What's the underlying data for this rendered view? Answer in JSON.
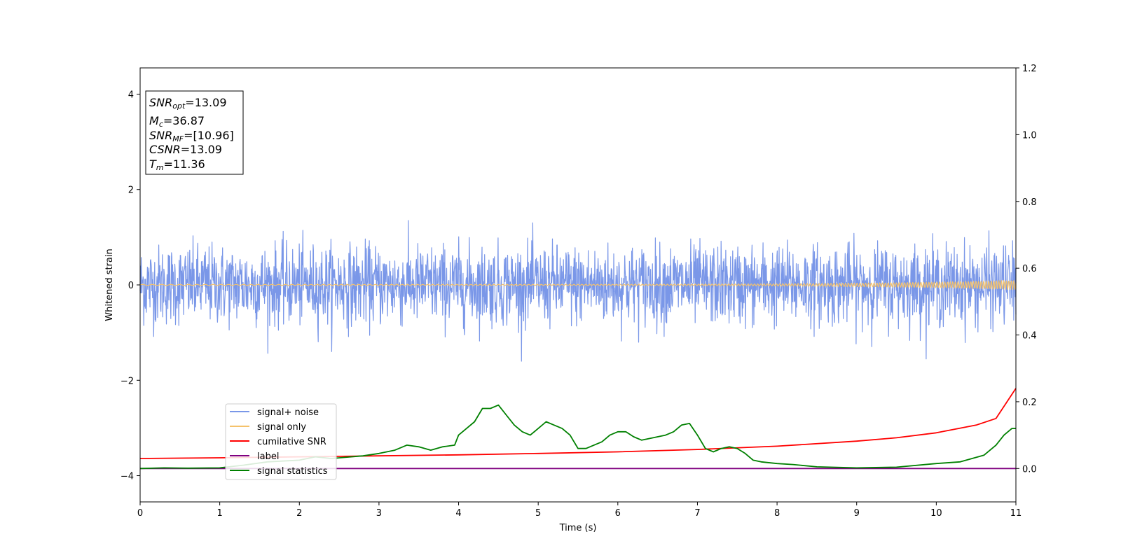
{
  "chart_data": {
    "type": "line",
    "xlabel": "Time (s)",
    "ylabel": "Whitened strain",
    "xlim": [
      0,
      11
    ],
    "ylim": [
      -4.55,
      4.55
    ],
    "y2lim": [
      -0.1,
      1.2
    ],
    "xticks": [
      "0",
      "1",
      "2",
      "3",
      "4",
      "5",
      "6",
      "7",
      "8",
      "9",
      "10",
      "11"
    ],
    "yticks": [
      "−4",
      "−2",
      "0",
      "2",
      "4"
    ],
    "y2ticks": [
      "0.0",
      "0.2",
      "0.4",
      "0.6",
      "0.8",
      "1.0",
      "1.2"
    ],
    "annotation": {
      "snr_opt": {
        "var": "SNR",
        "sub": "opt",
        "value": "=13.09"
      },
      "mc": {
        "var": "M",
        "sub": "c",
        "value": "=36.87"
      },
      "snr_mf": {
        "var": "SNR",
        "sub": "MF",
        "value": "=[10.96]"
      },
      "csnr": {
        "var": "CSNR",
        "sub": "",
        "value": "=13.09"
      },
      "tm": {
        "var": "T",
        "sub": "m",
        "value": "=11.36"
      }
    },
    "legend_position": "lower-left",
    "series": [
      {
        "name": "signal+ noise",
        "color": "#7a97e8",
        "axis": "left",
        "kind": "noise",
        "amplitude": 0.55,
        "peak": 1.6,
        "x_range": [
          0,
          11
        ]
      },
      {
        "name": "signal only",
        "color": "#f5c26b",
        "axis": "left",
        "kind": "chirp",
        "x_range": [
          0,
          11
        ],
        "start_amplitude": 0.01,
        "end_amplitude": 0.1
      },
      {
        "name": "cumilative SNR",
        "color": "#ff0000",
        "axis": "right",
        "x": [
          0,
          1,
          2,
          3,
          4,
          5,
          6,
          7,
          8,
          9,
          9.5,
          10,
          10.5,
          10.75,
          11
        ],
        "y": [
          0.03,
          0.032,
          0.035,
          0.038,
          0.041,
          0.045,
          0.05,
          0.057,
          0.067,
          0.082,
          0.092,
          0.107,
          0.13,
          0.15,
          0.24
        ]
      },
      {
        "name": "label",
        "color": "#800080",
        "axis": "right",
        "x": [
          0,
          11
        ],
        "y": [
          0,
          0
        ]
      },
      {
        "name": "signal statistics",
        "color": "#008000",
        "axis": "right",
        "x": [
          0,
          0.3,
          0.6,
          1.0,
          1.3,
          1.6,
          2.0,
          2.2,
          2.4,
          2.8,
          3.0,
          3.2,
          3.35,
          3.5,
          3.65,
          3.8,
          3.95,
          4.0,
          4.1,
          4.2,
          4.3,
          4.4,
          4.5,
          4.6,
          4.7,
          4.8,
          4.9,
          5.0,
          5.1,
          5.2,
          5.3,
          5.4,
          5.5,
          5.6,
          5.7,
          5.8,
          5.9,
          6.0,
          6.1,
          6.2,
          6.3,
          6.4,
          6.5,
          6.6,
          6.7,
          6.8,
          6.9,
          7.0,
          7.1,
          7.2,
          7.3,
          7.4,
          7.5,
          7.6,
          7.7,
          7.8,
          8.0,
          8.2,
          8.5,
          9.0,
          9.5,
          10.0,
          10.3,
          10.6,
          10.75,
          10.85,
          10.95,
          11.0
        ],
        "y": [
          0.0,
          0.002,
          0.001,
          0.002,
          0.01,
          0.02,
          0.025,
          0.035,
          0.03,
          0.038,
          0.045,
          0.055,
          0.07,
          0.065,
          0.055,
          0.065,
          0.07,
          0.1,
          0.12,
          0.14,
          0.18,
          0.18,
          0.19,
          0.16,
          0.13,
          0.11,
          0.1,
          0.12,
          0.14,
          0.13,
          0.12,
          0.1,
          0.06,
          0.06,
          0.07,
          0.08,
          0.1,
          0.11,
          0.11,
          0.095,
          0.085,
          0.09,
          0.095,
          0.1,
          0.11,
          0.13,
          0.135,
          0.1,
          0.06,
          0.05,
          0.06,
          0.065,
          0.06,
          0.045,
          0.025,
          0.02,
          0.015,
          0.012,
          0.005,
          0.002,
          0.004,
          0.015,
          0.02,
          0.04,
          0.07,
          0.1,
          0.12,
          0.12
        ]
      }
    ]
  }
}
